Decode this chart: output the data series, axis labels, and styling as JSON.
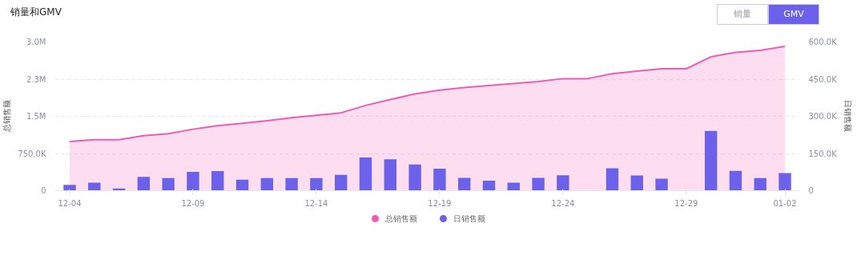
{
  "chart_data": {
    "type": "bar",
    "title": "销量和GMV",
    "annotations": [
      "销量",
      "GMV"
    ],
    "categories": [
      "12-04",
      null,
      null,
      null,
      null,
      "12-09",
      null,
      null,
      null,
      null,
      "12-14",
      null,
      null,
      null,
      null,
      "12-19",
      null,
      null,
      null,
      null,
      "12-24",
      null,
      null,
      null,
      null,
      "12-29",
      null,
      null,
      null,
      "01-02"
    ],
    "series": [
      {
        "name": "总销售额",
        "type": "area",
        "color": "#f05bb5",
        "values": [
          990000,
          1030000,
          1030000,
          1110000,
          1150000,
          1240000,
          1310000,
          1360000,
          1410000,
          1470000,
          1520000,
          1570000,
          1720000,
          1840000,
          1950000,
          2030000,
          2080000,
          2120000,
          2160000,
          2200000,
          2260000,
          2260000,
          2360000,
          2410000,
          2460000,
          2460000,
          2700000,
          2790000,
          2830000,
          2910000
        ]
      },
      {
        "name": "日销售额",
        "axis": "y2",
        "color": "#6c61ea",
        "values": [
          23000,
          32000,
          9000,
          56000,
          51000,
          76000,
          79000,
          44000,
          51000,
          51000,
          51000,
          64000,
          134000,
          127000,
          106000,
          89000,
          52000,
          40000,
          32000,
          52000,
          62000,
          0,
          90000,
          61000,
          48000,
          2000,
          241000,
          80000,
          51000,
          71000
        ]
      }
    ],
    "ylabel": "总销售额",
    "y2label": "日销售额",
    "ylim": [
      0,
      3000000
    ],
    "yticks": [
      0,
      {
        "value": 750000,
        "label": "750.0K"
      },
      {
        "value": 1500000,
        "label": "1.5M"
      },
      {
        "value": 2250000,
        "label": "2.3M"
      },
      {
        "value": 3000000,
        "label": "3.0M"
      }
    ],
    "y2lim": [
      0,
      600000
    ],
    "y2ticks": [
      0,
      {
        "value": 150000,
        "label": "150.0K"
      },
      {
        "value": 300000,
        "label": "300.0K"
      },
      {
        "value": 450000,
        "label": "450.0K"
      },
      {
        "value": 600000,
        "label": "600.0K"
      }
    ],
    "grid": "y",
    "legend": "bottom"
  }
}
